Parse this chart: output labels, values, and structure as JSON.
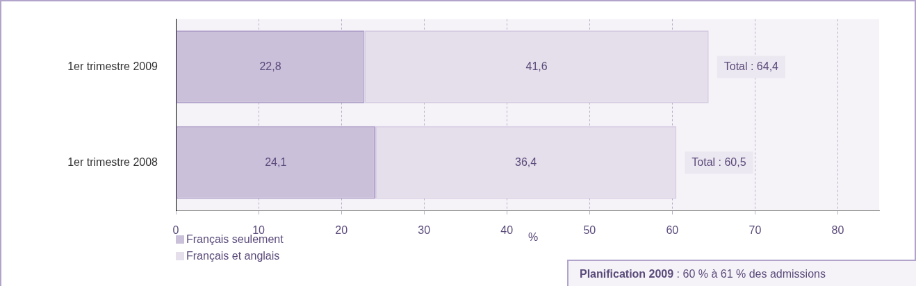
{
  "chart_data": {
    "type": "bar",
    "orientation": "horizontal",
    "stacked": true,
    "categories": [
      "1er trimestre 2009",
      "1er trimestre 2008"
    ],
    "series": [
      {
        "name": "Français seulement",
        "color": "#cbc0da",
        "values": [
          22.8,
          24.1
        ],
        "value_labels": [
          "22,8",
          "24,1"
        ]
      },
      {
        "name": "Français et anglais",
        "color": "#e5dfeb",
        "values": [
          41.6,
          36.4
        ],
        "value_labels": [
          "41,6",
          "36,4"
        ]
      }
    ],
    "totals": [
      "Total : 64,4",
      "Total : 60,5"
    ],
    "xlabel": "%",
    "xlim": [
      0,
      85
    ],
    "xticks": [
      0,
      10,
      20,
      30,
      40,
      50,
      60,
      70,
      80
    ],
    "grid": "x",
    "legend": "bottom left",
    "annotations": [
      "Planification 2009 : 60 % à 61 % des admissions"
    ]
  }
}
